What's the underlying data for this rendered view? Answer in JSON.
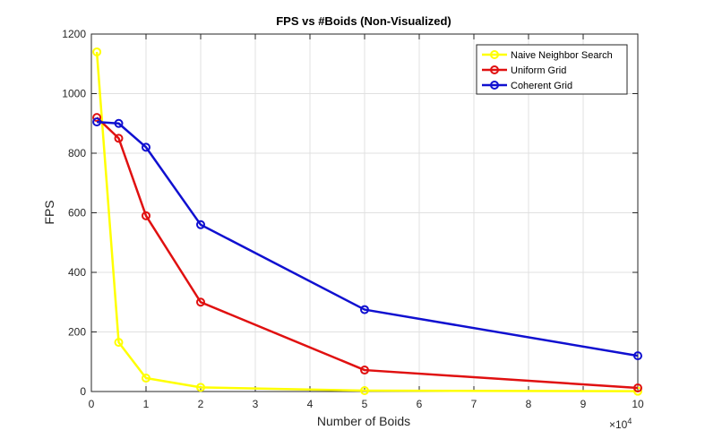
{
  "chart_data": {
    "type": "line",
    "title": "FPS vs #Boids (Non-Visualized)",
    "xlabel": "Number of Boids",
    "ylabel": "FPS",
    "x_exponent_base": "×10",
    "x_exponent_power": "4",
    "xlim": [
      0,
      10
    ],
    "ylim": [
      0,
      1200
    ],
    "x_ticks": [
      0,
      1,
      2,
      3,
      4,
      5,
      6,
      7,
      8,
      9,
      10
    ],
    "x_tick_labels": [
      "0",
      "1",
      "2",
      "3",
      "4",
      "5",
      "6",
      "7",
      "8",
      "9",
      "10"
    ],
    "y_ticks": [
      0,
      200,
      400,
      600,
      800,
      1000,
      1200
    ],
    "y_tick_labels": [
      "0",
      "200",
      "400",
      "600",
      "800",
      "1000",
      "1200"
    ],
    "grid": true,
    "legend_position": "top-right",
    "x": [
      0.1,
      0.5,
      1,
      2,
      5,
      10
    ],
    "series": [
      {
        "name": "Naive Neighbor Search",
        "color": "#ffff00",
        "values": [
          1140,
          165,
          45,
          14,
          3,
          1
        ]
      },
      {
        "name": "Uniform Grid",
        "color": "#e01010",
        "values": [
          920,
          850,
          590,
          300,
          72,
          12
        ]
      },
      {
        "name": "Coherent Grid",
        "color": "#1010d0",
        "values": [
          905,
          900,
          820,
          560,
          275,
          120
        ]
      }
    ]
  }
}
